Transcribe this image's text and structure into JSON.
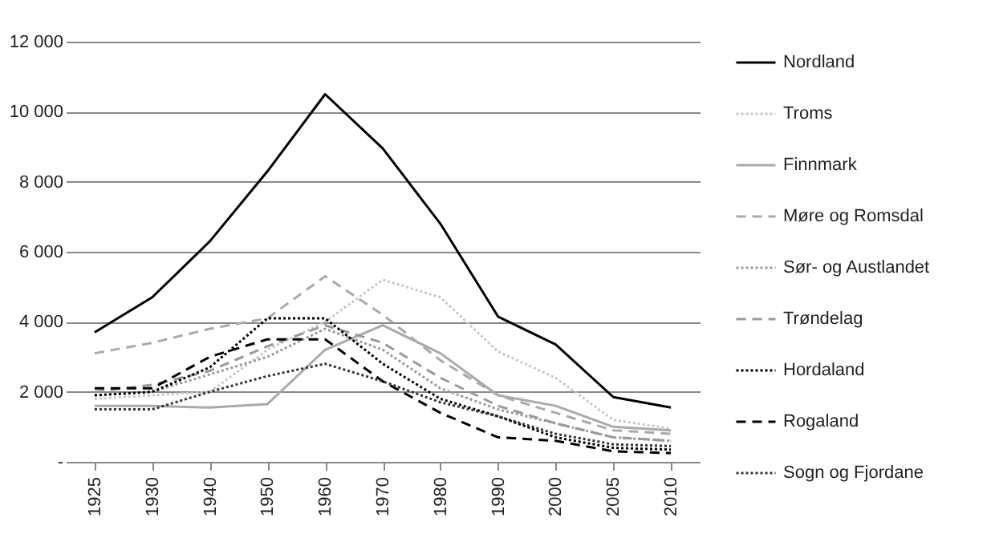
{
  "chart_data": {
    "type": "line",
    "categories": [
      "1925",
      "1930",
      "1940",
      "1950",
      "1960",
      "1970",
      "1980",
      "1990",
      "2000",
      "2005",
      "2010"
    ],
    "ylim": [
      0,
      12000
    ],
    "yticks": [
      {
        "value": 0,
        "label": "-"
      },
      {
        "value": 2000,
        "label": "2 000"
      },
      {
        "value": 4000,
        "label": "4 000"
      },
      {
        "value": 6000,
        "label": "6 000"
      },
      {
        "value": 8000,
        "label": "8 000"
      },
      {
        "value": 10000,
        "label": "10 000"
      },
      {
        "value": 12000,
        "label": "12 000"
      }
    ],
    "grid": "y",
    "legend": "right",
    "marker": "none",
    "series": [
      {
        "name": "Nordland",
        "color": "#000000",
        "line_style": "solid",
        "values": [
          3700,
          4700,
          6300,
          8300,
          10500,
          8950,
          6800,
          4150,
          3350,
          1850,
          1550
        ]
      },
      {
        "name": "Troms",
        "color": "#c8c8c8",
        "line_style": "dotted",
        "values": [
          1800,
          1900,
          2000,
          3200,
          4000,
          5200,
          4700,
          3150,
          2400,
          1200,
          950
        ]
      },
      {
        "name": "Finnmark",
        "color": "#aaaaaa",
        "line_style": "solid",
        "values": [
          1600,
          1600,
          1550,
          1650,
          3200,
          3900,
          3100,
          1900,
          1600,
          1000,
          900
        ]
      },
      {
        "name": "Møre og Romsdal",
        "color": "#aaaaaa",
        "line_style": "dashed",
        "values": [
          3100,
          3400,
          3800,
          4100,
          5300,
          4200,
          2900,
          1900,
          1400,
          900,
          800
        ]
      },
      {
        "name": "Sør- og Austlandet",
        "color": "#999999",
        "line_style": "dotted",
        "values": [
          1900,
          2000,
          2500,
          3000,
          3800,
          3200,
          2100,
          1500,
          1100,
          700,
          600
        ]
      },
      {
        "name": "Trøndelag",
        "color": "#999999",
        "line_style": "dashed",
        "values": [
          2000,
          2200,
          2600,
          3300,
          3900,
          3400,
          2400,
          1600,
          1100,
          700,
          600
        ]
      },
      {
        "name": "Hordaland",
        "color": "#000000",
        "line_style": "dotted",
        "values": [
          1900,
          2000,
          2700,
          4100,
          4100,
          2800,
          1800,
          1300,
          700,
          400,
          350
        ]
      },
      {
        "name": "Rogaland",
        "color": "#000000",
        "line_style": "dashed",
        "values": [
          2100,
          2100,
          3000,
          3500,
          3500,
          2300,
          1400,
          700,
          600,
          300,
          250
        ]
      },
      {
        "name": "Sogn og Fjordane",
        "color": "#333333",
        "line_style": "dotted",
        "values": [
          1500,
          1500,
          2000,
          2450,
          2800,
          2300,
          1700,
          1300,
          800,
          500,
          450
        ]
      }
    ]
  }
}
